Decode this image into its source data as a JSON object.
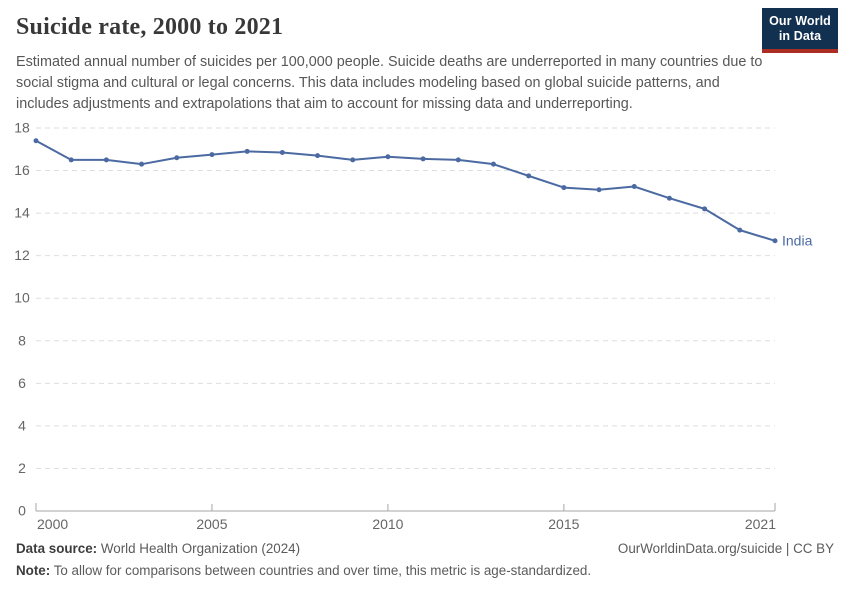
{
  "header": {
    "title": "Suicide rate, 2000 to 2021",
    "subtitle": "Estimated annual number of suicides per 100,000 people. Suicide deaths are underreported in many countries due to social stigma and cultural or legal concerns. This data includes modeling based on global suicide patterns, and includes adjustments and extrapolations that aim to account for missing data and underreporting.",
    "logo": {
      "line1": "Our World",
      "line2": "in Data",
      "bg_color": "#12304f",
      "stripe_color": "#ab2e24"
    }
  },
  "chart_data": {
    "type": "line",
    "title": "Suicide rate, 2000 to 2021",
    "xlabel": "",
    "ylabel": "",
    "xlim": [
      2000,
      2021
    ],
    "ylim": [
      0,
      18
    ],
    "x_ticks": [
      2000,
      2005,
      2010,
      2015,
      2021
    ],
    "y_ticks": [
      0,
      2,
      4,
      6,
      8,
      10,
      12,
      14,
      16,
      18
    ],
    "grid": "horizontal-dashed",
    "legend_position": "end-of-line-label",
    "x": [
      2000,
      2001,
      2002,
      2003,
      2004,
      2005,
      2006,
      2007,
      2008,
      2009,
      2010,
      2011,
      2012,
      2013,
      2014,
      2015,
      2016,
      2017,
      2018,
      2019,
      2020,
      2021
    ],
    "series": [
      {
        "name": "India",
        "color": "#4c6aa2",
        "values": [
          17.4,
          16.5,
          16.5,
          16.3,
          16.6,
          16.75,
          16.9,
          16.85,
          16.7,
          16.5,
          16.65,
          16.55,
          16.5,
          16.3,
          15.75,
          15.2,
          15.1,
          15.25,
          14.7,
          14.2,
          13.2,
          12.7
        ]
      }
    ],
    "colors": {
      "grid": "#dedede",
      "axis": "#a6a6a6",
      "tick_label": "#666666"
    }
  },
  "footer": {
    "source_label": "Data source:",
    "source_text": " World Health Organization (2024)",
    "credit": "OurWorldinData.org/suicide | CC BY",
    "note_label": "Note:",
    "note_text": " To allow for comparisons between countries and over time, this metric is age-standardized."
  }
}
